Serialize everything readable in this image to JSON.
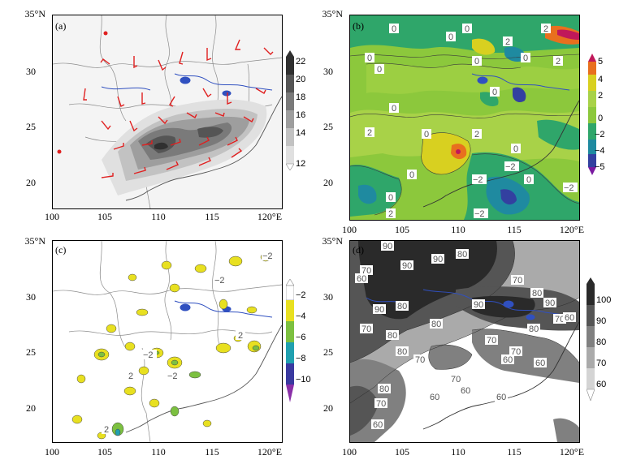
{
  "panels": [
    {
      "id": "a",
      "label": "(a)",
      "lat_labels": [
        "35°N",
        "30",
        "25",
        "20"
      ],
      "lon_labels": [
        "100",
        "105",
        "110",
        "115",
        "120°E"
      ],
      "colorbar": {
        "ticks": [
          "22",
          "20",
          "18",
          "16",
          "14",
          "12"
        ],
        "colors": [
          "#303030",
          "#555555",
          "#7a7a7a",
          "#9e9e9e",
          "#c2c2c2",
          "#e0e0e0"
        ]
      }
    },
    {
      "id": "b",
      "label": "(b)",
      "lat_labels": [
        "35°N",
        "30",
        "25",
        "20"
      ],
      "lon_labels": [
        "100",
        "105",
        "110",
        "115",
        "120°E"
      ],
      "contour_labels": [
        "0",
        "0",
        "0",
        "2",
        "0",
        "0",
        "2",
        "0",
        "0",
        "2",
        "0",
        "2",
        "0",
        "0",
        "2",
        "0",
        "−2",
        "−2",
        "0",
        "0",
        "0",
        "2",
        "−2",
        "−2"
      ],
      "colorbar": {
        "ticks": [
          "5",
          "4",
          "2",
          "0",
          "−2",
          "−4",
          "−5"
        ],
        "colors": [
          "#c0185a",
          "#e8701e",
          "#d8d020",
          "#8cc83c",
          "#2fa66a",
          "#1f8aa0",
          "#3340a0",
          "#7a1aa0"
        ]
      }
    },
    {
      "id": "c",
      "label": "(c)",
      "lat_labels": [
        "35°N",
        "30",
        "25",
        "20"
      ],
      "lon_labels": [
        "100",
        "105",
        "110",
        "115",
        "120°E"
      ],
      "contour_labels": [
        "−2",
        "−2",
        "2",
        "−2",
        "−2",
        "2",
        "2"
      ],
      "colorbar": {
        "ticks": [
          "−2",
          "−4",
          "−6",
          "−8",
          "−10"
        ],
        "colors": [
          "#ffffff",
          "#e8e020",
          "#7cc040",
          "#20a0b0",
          "#3a3aa0",
          "#8a30a8"
        ]
      }
    },
    {
      "id": "d",
      "label": "(d)",
      "lat_labels": [
        "35°N",
        "30",
        "25",
        "20"
      ],
      "lon_labels": [
        "100",
        "105",
        "110",
        "115",
        "120°E"
      ],
      "contour_labels": [
        "90",
        "70",
        "90",
        "80",
        "60",
        "70",
        "90",
        "80",
        "90",
        "70",
        "80",
        "80",
        "90",
        "80",
        "70",
        "90",
        "60",
        "80",
        "70",
        "70",
        "60",
        "80",
        "70",
        "60",
        "70",
        "80",
        "60",
        "60",
        "60",
        "70",
        "60"
      ],
      "colorbar": {
        "ticks": [
          "100",
          "90",
          "80",
          "70",
          "60"
        ],
        "colors": [
          "#2a2a2a",
          "#555555",
          "#808080",
          "#aaaaaa",
          "#d4d4d4",
          "#ffffff"
        ]
      }
    }
  ]
}
